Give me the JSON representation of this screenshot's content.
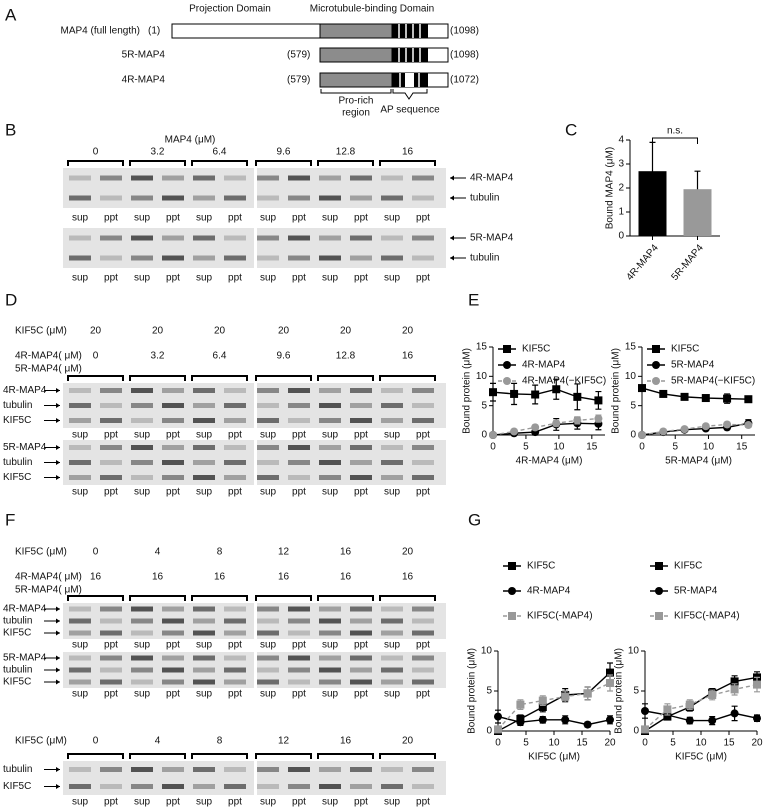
{
  "figure": {
    "panel_a": {
      "letter": "A",
      "domains": [
        "Projection Domain",
        "Microtubule-binding Domain"
      ],
      "constructs": [
        {
          "name": "MAP4 (full length)",
          "start": "(1)",
          "end": "(1098)"
        },
        {
          "name": "5R-MAP4",
          "start": "(579)",
          "end": "(1098)"
        },
        {
          "name": "4R-MAP4",
          "start": "(579)",
          "end": "(1072)"
        }
      ],
      "pro_rich": [
        "Pro-rich",
        "region"
      ],
      "ap": "AP sequence"
    },
    "panel_b": {
      "letter": "B",
      "title": "MAP4 (μM)",
      "rows": [
        {
          "values": [
            "0",
            "3.2",
            "6.4",
            "9.6",
            "12.8",
            "16"
          ]
        }
      ],
      "gels": [
        {
          "lanes": [
            "sup",
            "ppt",
            "sup",
            "ppt",
            "sup",
            "ppt",
            "sup",
            "ppt",
            "sup",
            "ppt",
            "sup",
            "ppt"
          ],
          "bands": [
            "4R-MAP4",
            "tubulin"
          ]
        },
        {
          "lanes": [
            "sup",
            "ppt",
            "sup",
            "ppt",
            "sup",
            "ppt",
            "sup",
            "ppt",
            "sup",
            "ppt",
            "sup",
            "ppt"
          ],
          "bands": [
            "5R-MAP4",
            "tubulin"
          ]
        }
      ]
    },
    "panel_c": {
      "letter": "C"
    },
    "panel_d": {
      "letter": "D",
      "rows": [
        {
          "label": [
            "KIF5C (μM)"
          ],
          "values": [
            "20",
            "20",
            "20",
            "20",
            "20",
            "20"
          ]
        },
        {
          "label": [
            "4R-MAP4( μM)",
            "5R-MAP4( μM)"
          ],
          "values": [
            "0",
            "3.2",
            "6.4",
            "9.6",
            "12.8",
            "16"
          ]
        }
      ],
      "gels": [
        {
          "lanes": [
            "sup",
            "ppt",
            "sup",
            "ppt",
            "sup",
            "ppt",
            "sup",
            "ppt",
            "sup",
            "ppt",
            "sup",
            "ppt"
          ],
          "bands": [
            "4R-MAP4",
            "tubulin",
            "KIF5C"
          ]
        },
        {
          "lanes": [
            "sup",
            "ppt",
            "sup",
            "ppt",
            "sup",
            "ppt",
            "sup",
            "ppt",
            "sup",
            "ppt",
            "sup",
            "ppt"
          ],
          "bands": [
            "5R-MAP4",
            "tubulin",
            "KIF5C"
          ]
        }
      ]
    },
    "panel_e": {
      "letter": "E"
    },
    "panel_f": {
      "letter": "F",
      "upper": {
        "rows": [
          {
            "label": [
              "KIF5C (μM)"
            ],
            "values": [
              "0",
              "4",
              "8",
              "12",
              "16",
              "20"
            ]
          },
          {
            "label": [
              "4R-MAP4( μM)",
              "5R-MAP4( μM)"
            ],
            "values": [
              "16",
              "16",
              "16",
              "16",
              "16",
              "16"
            ]
          }
        ],
        "gels": [
          {
            "lanes": [
              "sup",
              "ppt",
              "sup",
              "ppt",
              "sup",
              "ppt",
              "sup",
              "ppt",
              "sup",
              "ppt",
              "sup",
              "ppt"
            ],
            "bands": [
              "4R-MAP4",
              "tubulin",
              "KIF5C"
            ]
          },
          {
            "lanes": [
              "sup",
              "ppt",
              "sup",
              "ppt",
              "sup",
              "ppt",
              "sup",
              "ppt",
              "sup",
              "ppt",
              "sup",
              "ppt"
            ],
            "bands": [
              "5R-MAP4",
              "tubulin",
              "KIF5C"
            ]
          }
        ]
      },
      "lower": {
        "rows": [
          {
            "label": [
              "KIF5C (μM)"
            ],
            "values": [
              "0",
              "4",
              "8",
              "12",
              "16",
              "20"
            ]
          }
        ],
        "gels": [
          {
            "lanes": [
              "sup",
              "ppt",
              "sup",
              "ppt",
              "sup",
              "ppt",
              "sup",
              "ppt",
              "sup",
              "ppt",
              "sup",
              "ppt"
            ],
            "bands": [
              "tubulin",
              "KIF5C"
            ]
          }
        ]
      }
    },
    "panel_g": {
      "letter": "G"
    }
  },
  "chart_data": [
    {
      "type": "bar",
      "ylabel": "Bound MAP4 (μM)",
      "categories": [
        "4R-MAP4",
        "5R-MAP4"
      ],
      "values": [
        2.7,
        1.95
      ],
      "errors": [
        1.2,
        0.75
      ],
      "colors": [
        "#000000",
        "#999999"
      ],
      "ylim": [
        0,
        4
      ],
      "yticks": [
        0,
        1,
        2,
        3,
        4
      ],
      "annotation": "n.s."
    },
    {
      "type": "line",
      "xlabel": "4R-MAP4 (μM)",
      "ylabel": "Bound protein (μM)",
      "x": [
        0,
        3.2,
        6.4,
        9.6,
        12.8,
        16
      ],
      "xlim": [
        0,
        17
      ],
      "xticks": [
        0,
        5,
        10,
        15
      ],
      "ylim": [
        0,
        15
      ],
      "yticks": [
        0,
        5,
        10,
        15
      ],
      "legend": "upper left",
      "series": [
        {
          "name": "KIF5C",
          "color": "#000000",
          "marker": "square",
          "linestyle": "solid",
          "values": [
            7.3,
            7.0,
            6.9,
            7.8,
            6.5,
            5.9
          ],
          "errors": [
            1.5,
            1.8,
            1.6,
            1.7,
            2.2,
            1.5
          ]
        },
        {
          "name": "4R-MAP4",
          "color": "#000000",
          "marker": "circle",
          "linestyle": "solid",
          "values": [
            0,
            0.3,
            0.5,
            1.8,
            2.0,
            1.9
          ],
          "errors": [
            0.1,
            0.3,
            0.5,
            1.0,
            1.0,
            1.0
          ]
        },
        {
          "name": "4R-MAP4(−KIF5C)",
          "color": "#999999",
          "marker": "circle",
          "linestyle": "dashed",
          "values": [
            0,
            0.6,
            1.3,
            2.0,
            2.5,
            2.8
          ],
          "errors": [
            0.1,
            0.3,
            0.4,
            0.5,
            0.6,
            0.6
          ]
        }
      ]
    },
    {
      "type": "line",
      "xlabel": "5R-MAP4 (μM)",
      "ylabel": "Bound protein (μM)",
      "x": [
        0,
        3.2,
        6.4,
        9.6,
        12.8,
        16
      ],
      "xlim": [
        0,
        17
      ],
      "xticks": [
        0,
        5,
        10,
        15
      ],
      "ylim": [
        0,
        15
      ],
      "yticks": [
        0,
        5,
        10,
        15
      ],
      "legend": "upper left",
      "series": [
        {
          "name": "KIF5C",
          "color": "#000000",
          "marker": "square",
          "linestyle": "solid",
          "values": [
            8.0,
            7.0,
            6.5,
            6.3,
            6.2,
            6.1
          ],
          "errors": [
            0.4,
            0.4,
            0.4,
            0.5,
            0.8,
            0.5
          ]
        },
        {
          "name": "5R-MAP4",
          "color": "#000000",
          "marker": "circle",
          "linestyle": "solid",
          "values": [
            0,
            0.5,
            0.9,
            1.1,
            1.3,
            2.0
          ],
          "errors": [
            0.1,
            0.2,
            0.3,
            0.3,
            0.4,
            0.6
          ]
        },
        {
          "name": "5R-MAP4(−KIF5C)",
          "color": "#999999",
          "marker": "circle",
          "linestyle": "dashed",
          "values": [
            0,
            0.6,
            1.0,
            1.5,
            1.8,
            1.7
          ],
          "errors": [
            0.1,
            0.2,
            0.3,
            0.3,
            0.4,
            0.4
          ]
        }
      ]
    },
    {
      "type": "line",
      "xlabel": "KIF5C (μM)",
      "ylabel": "Bound protein (μM)",
      "x": [
        0,
        4,
        8,
        12,
        16,
        20
      ],
      "xlim": [
        0,
        20
      ],
      "xticks": [
        0,
        5,
        10,
        15,
        20
      ],
      "ylim": [
        0,
        10
      ],
      "yticks": [
        0,
        5,
        10
      ],
      "legend": "upper left",
      "series": [
        {
          "name": "KIF5C",
          "color": "#000000",
          "marker": "square",
          "linestyle": "solid",
          "values": [
            0,
            1.5,
            3.0,
            4.5,
            4.7,
            7.3
          ],
          "errors": [
            0.3,
            0.5,
            0.6,
            0.8,
            0.8,
            1.2
          ]
        },
        {
          "name": "4R-MAP4",
          "color": "#000000",
          "marker": "circle",
          "linestyle": "solid",
          "values": [
            1.8,
            1.1,
            1.4,
            1.4,
            0.8,
            1.4
          ],
          "errors": [
            0.8,
            0.4,
            0.4,
            0.5,
            0.3,
            0.5
          ]
        },
        {
          "name": "KIF5C(-MAP4)",
          "color": "#999999",
          "marker": "square",
          "linestyle": "dashed",
          "values": [
            0.2,
            3.3,
            3.8,
            4.3,
            4.7,
            6.0
          ],
          "errors": [
            0.2,
            0.6,
            0.6,
            0.7,
            0.8,
            1.0
          ]
        }
      ]
    },
    {
      "type": "line",
      "xlabel": "KIF5C (μM)",
      "ylabel": "Bound protein (μM)",
      "x": [
        0,
        4,
        8,
        12,
        16,
        20
      ],
      "xlim": [
        0,
        20
      ],
      "xticks": [
        0,
        5,
        10,
        15,
        20
      ],
      "ylim": [
        0,
        10
      ],
      "yticks": [
        0,
        5,
        10
      ],
      "legend": "upper left",
      "series": [
        {
          "name": "KIF5C",
          "color": "#000000",
          "marker": "square",
          "linestyle": "solid",
          "values": [
            0,
            1.8,
            3.0,
            4.8,
            6.2,
            6.7
          ],
          "errors": [
            0.3,
            0.4,
            0.5,
            0.5,
            0.7,
            0.7
          ]
        },
        {
          "name": "5R-MAP4",
          "color": "#000000",
          "marker": "circle",
          "linestyle": "solid",
          "values": [
            2.5,
            2.0,
            1.3,
            1.3,
            2.2,
            1.6
          ],
          "errors": [
            0.9,
            0.5,
            0.4,
            0.5,
            0.9,
            0.4
          ]
        },
        {
          "name": "KIF5C(-MAP4)",
          "color": "#999999",
          "marker": "square",
          "linestyle": "dashed",
          "values": [
            0.2,
            2.7,
            3.3,
            4.5,
            5.2,
            5.8
          ],
          "errors": [
            0.2,
            0.7,
            0.6,
            0.6,
            0.7,
            0.9
          ]
        }
      ]
    }
  ]
}
